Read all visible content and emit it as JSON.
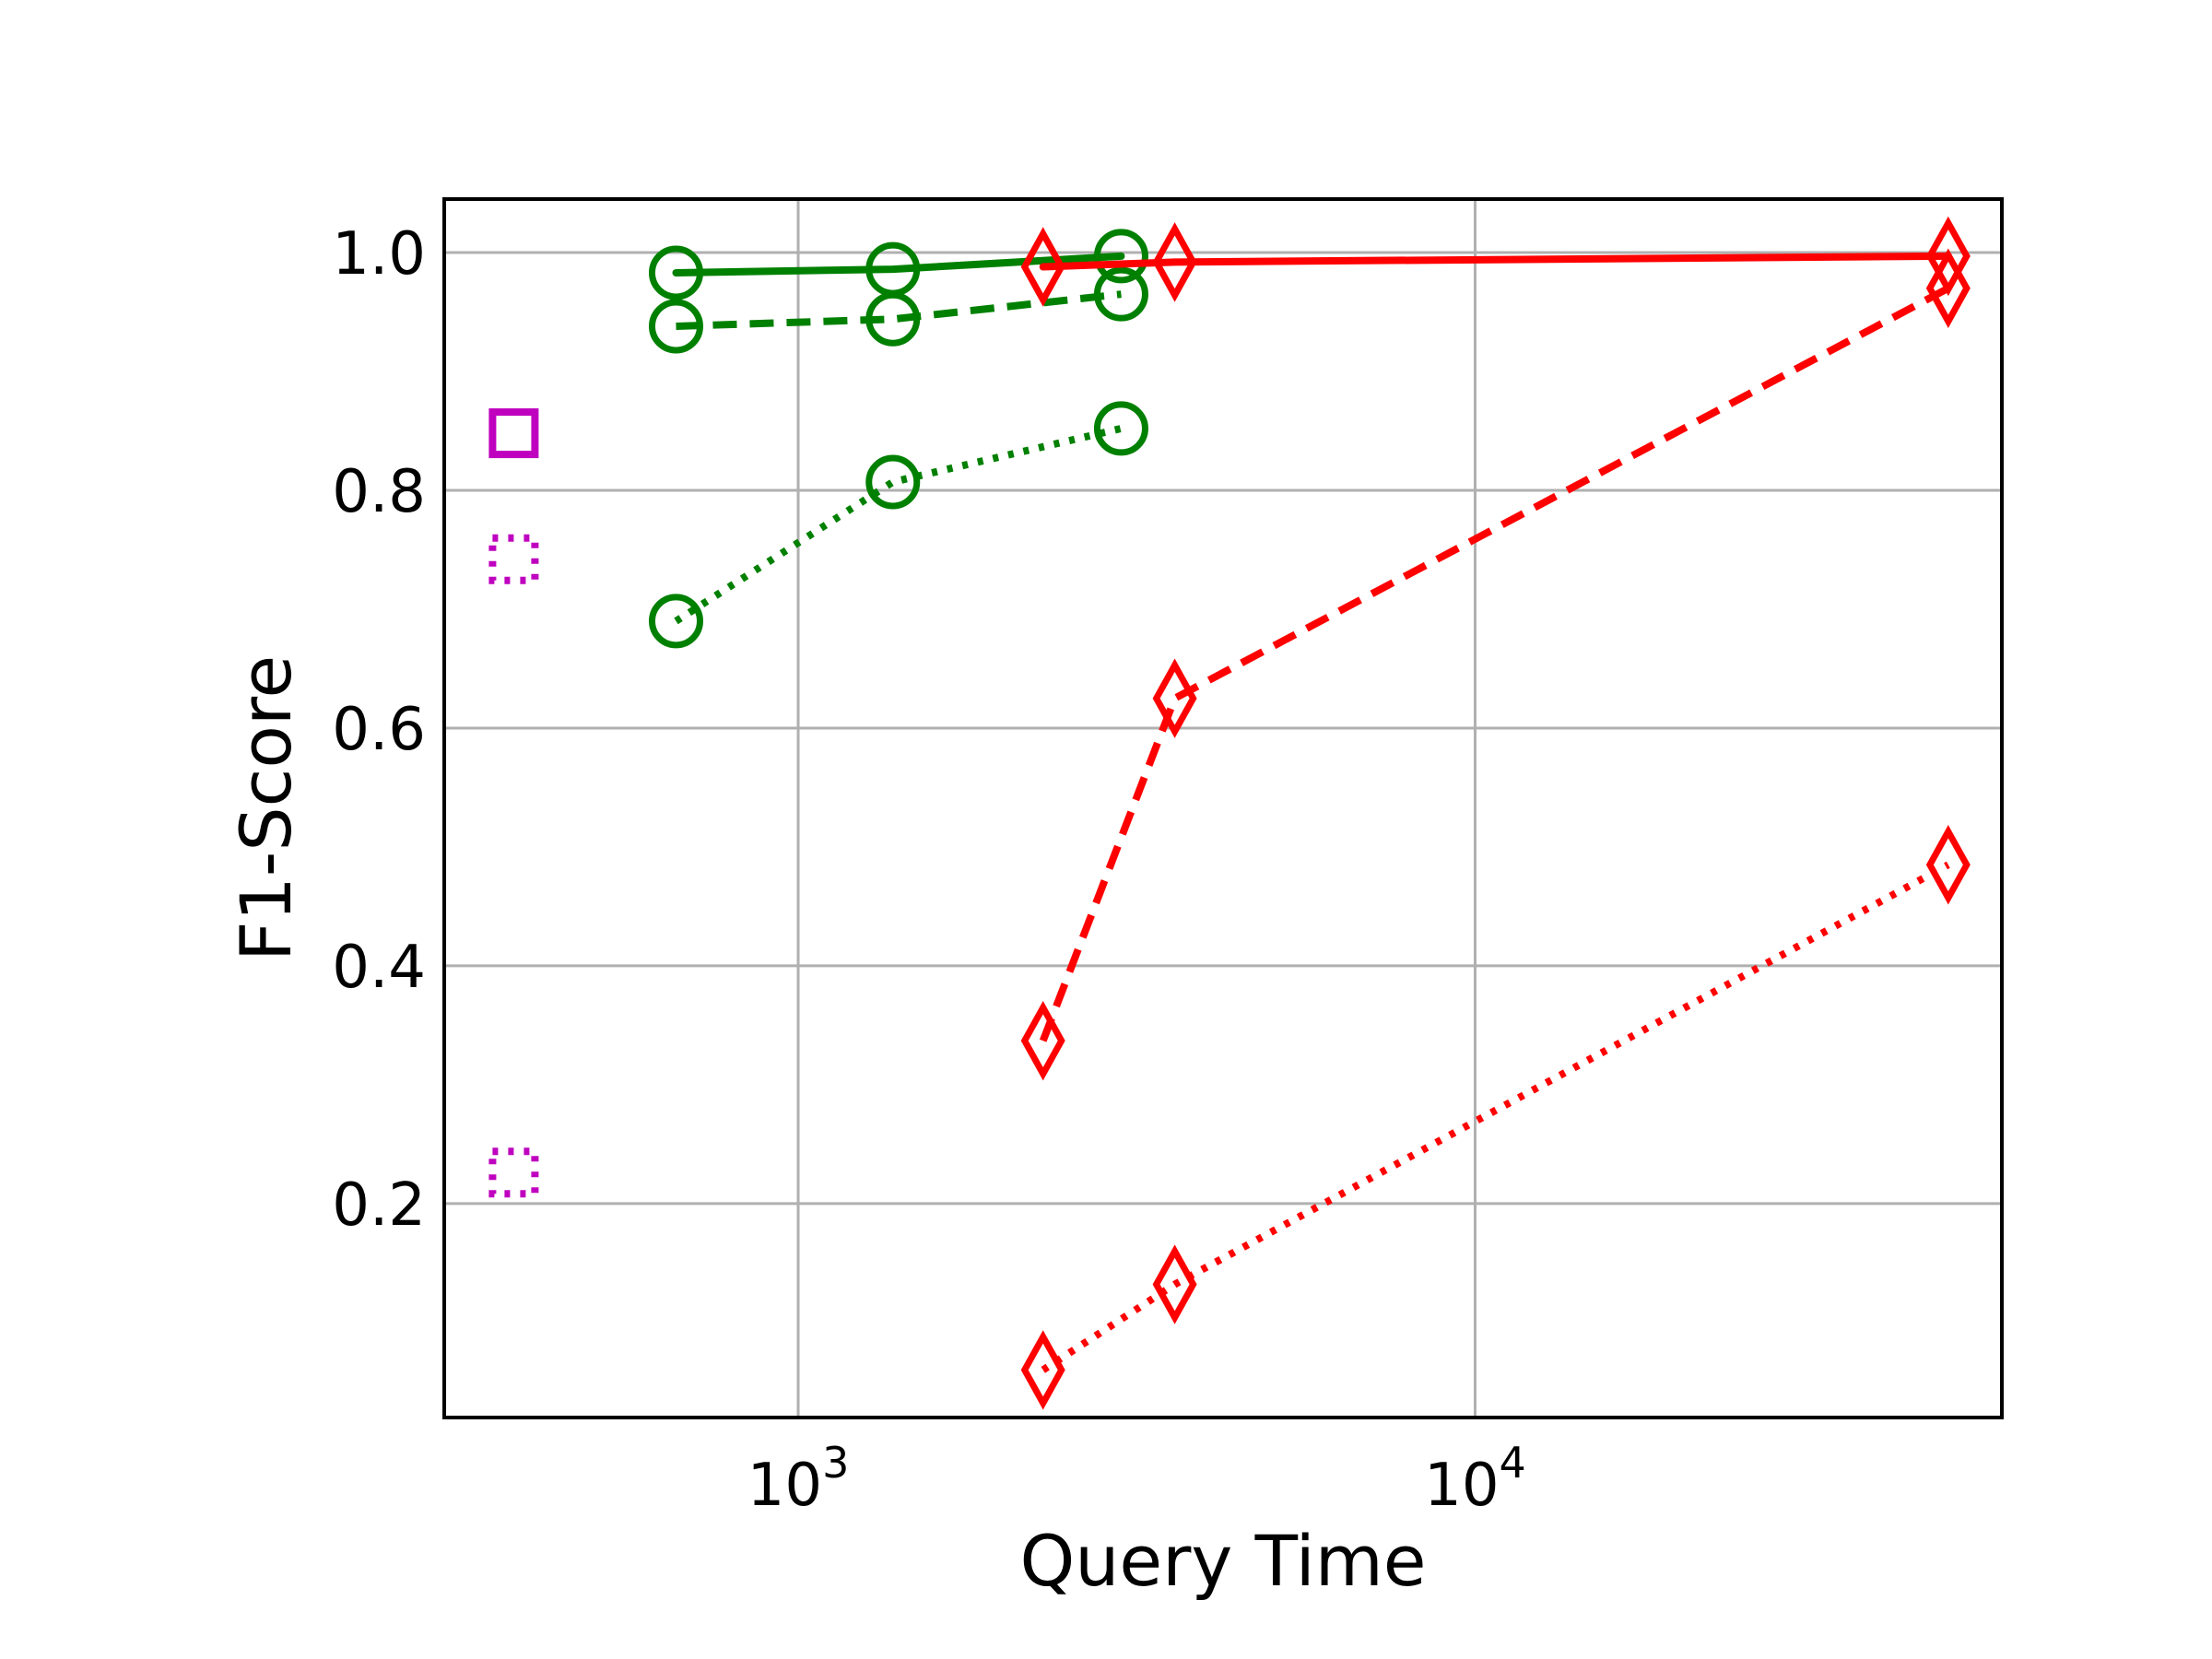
{
  "chart_data": {
    "type": "line",
    "title": "",
    "xlabel": "Query Time",
    "ylabel": "F1-Score",
    "xscale": "log",
    "xlim": [
      300,
      60000
    ],
    "ylim": [
      0.02,
      1.045
    ],
    "grid": true,
    "legend": "none",
    "x_ticks": [
      {
        "value": 1000,
        "base": "10",
        "exp": "3"
      },
      {
        "value": 10000,
        "base": "10",
        "exp": "4"
      }
    ],
    "y_ticks": [
      {
        "value": 0.2,
        "label": "0.2"
      },
      {
        "value": 0.4,
        "label": "0.4"
      },
      {
        "value": 0.6,
        "label": "0.6"
      },
      {
        "value": 0.8,
        "label": "0.8"
      },
      {
        "value": 1.0,
        "label": "1.0"
      }
    ],
    "series": [
      {
        "color": "#008000",
        "marker": "circle",
        "linestyle": "solid",
        "x": [
          660,
          1380,
          3000
        ],
        "y": [
          0.983,
          0.986,
          0.997
        ]
      },
      {
        "color": "#008000",
        "marker": "circle",
        "linestyle": "dashed",
        "x": [
          660,
          1380,
          3000
        ],
        "y": [
          0.938,
          0.944,
          0.965
        ]
      },
      {
        "color": "#008000",
        "marker": "circle",
        "linestyle": "dotted",
        "x": [
          660,
          1380,
          3000
        ],
        "y": [
          0.69,
          0.807,
          0.852
        ]
      },
      {
        "color": "#ff0000",
        "marker": "diamond",
        "linestyle": "solid",
        "x": [
          2300,
          3600,
          50000
        ],
        "y": [
          0.988,
          0.992,
          0.997
        ]
      },
      {
        "color": "#ff0000",
        "marker": "diamond",
        "linestyle": "dashed",
        "x": [
          2300,
          3600,
          50000
        ],
        "y": [
          0.337,
          0.625,
          0.97
        ]
      },
      {
        "color": "#ff0000",
        "marker": "diamond",
        "linestyle": "dotted",
        "x": [
          2300,
          3600,
          50000
        ],
        "y": [
          0.06,
          0.132,
          0.485
        ]
      },
      {
        "color": "#bf00bf",
        "marker": "square",
        "linestyle": "solid",
        "x": [
          380
        ],
        "y": [
          0.848
        ]
      },
      {
        "color": "#bf00bf",
        "marker": "square",
        "linestyle": "dotted",
        "x": [
          380
        ],
        "y": [
          0.742
        ]
      },
      {
        "color": "#bf00bf",
        "marker": "square",
        "linestyle": "dotted",
        "x": [
          380
        ],
        "y": [
          0.226
        ]
      }
    ]
  }
}
